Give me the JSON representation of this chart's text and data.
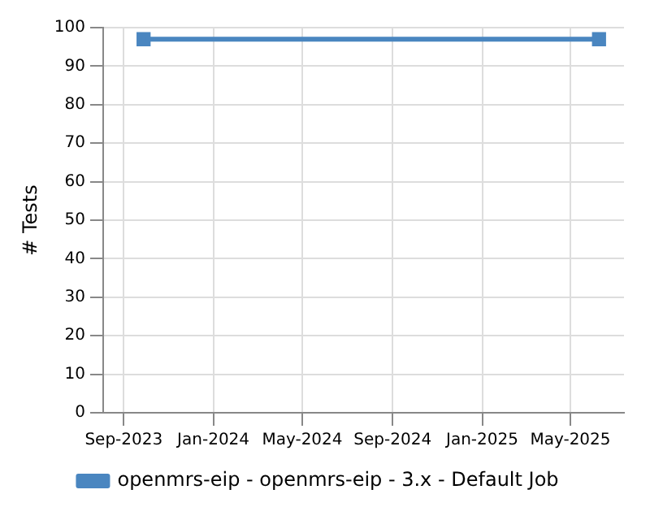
{
  "chart_data": {
    "type": "line",
    "ylabel": "# Tests",
    "x": [
      "2023-09-28",
      "2025-06-09"
    ],
    "series": [
      {
        "name": "openmrs-eip - openmrs-eip - 3.x - Default Job",
        "color": "#4a86c0",
        "values": [
          97,
          97
        ]
      }
    ],
    "xlim": [
      "2023-08-04",
      "2025-07-13"
    ],
    "xticks": [
      {
        "value": "2023-09-01",
        "label": "Sep-2023"
      },
      {
        "value": "2024-01-01",
        "label": "Jan-2024"
      },
      {
        "value": "2024-05-01",
        "label": "May-2024"
      },
      {
        "value": "2024-09-01",
        "label": "Sep-2024"
      },
      {
        "value": "2025-01-01",
        "label": "Jan-2025"
      },
      {
        "value": "2025-05-01",
        "label": "May-2025"
      }
    ],
    "ylim": [
      0,
      100
    ],
    "yticks": [
      0,
      10,
      20,
      30,
      40,
      50,
      60,
      70,
      80,
      90,
      100
    ],
    "grid": true,
    "legend": "bottom",
    "marker": "square",
    "line_style": "solid"
  }
}
